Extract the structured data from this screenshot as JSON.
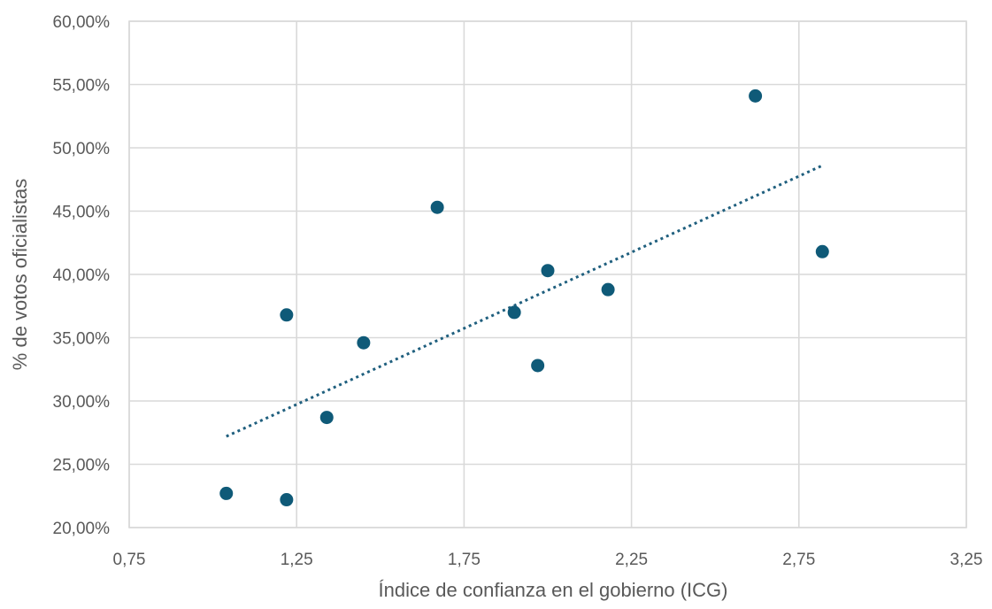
{
  "chart_data": {
    "type": "scatter",
    "xlabel": "Índice de confianza en el gobierno (ICG)",
    "ylabel": "% de votos oficialistas",
    "xlim": [
      0.75,
      3.25
    ],
    "ylim": [
      20,
      60
    ],
    "x_ticks": [
      "0,75",
      "1,25",
      "1,75",
      "2,25",
      "2,75",
      "3,25"
    ],
    "x_tick_values": [
      0.75,
      1.25,
      1.75,
      2.25,
      2.75,
      3.25
    ],
    "y_ticks": [
      "20,00%",
      "25,00%",
      "30,00%",
      "35,00%",
      "40,00%",
      "45,00%",
      "50,00%",
      "55,00%",
      "60,00%"
    ],
    "y_tick_values": [
      20,
      25,
      30,
      35,
      40,
      45,
      50,
      55,
      60
    ],
    "grid": true,
    "series": [
      {
        "points": [
          {
            "x": 1.04,
            "y": 22.7
          },
          {
            "x": 1.22,
            "y": 22.2
          },
          {
            "x": 1.22,
            "y": 36.8
          },
          {
            "x": 1.34,
            "y": 28.7
          },
          {
            "x": 1.45,
            "y": 34.6
          },
          {
            "x": 1.67,
            "y": 45.3
          },
          {
            "x": 1.9,
            "y": 37.0
          },
          {
            "x": 1.97,
            "y": 32.8
          },
          {
            "x": 2.0,
            "y": 40.3
          },
          {
            "x": 2.18,
            "y": 38.8
          },
          {
            "x": 2.62,
            "y": 54.1
          },
          {
            "x": 2.82,
            "y": 41.8
          }
        ],
        "color": "#0f5a78"
      }
    ],
    "trendline": {
      "type": "linear",
      "from": {
        "x": 1.04,
        "y": 27.2
      },
      "to": {
        "x": 2.82,
        "y": 48.6
      },
      "color": "#1f5f7e",
      "style": "dotted"
    }
  }
}
